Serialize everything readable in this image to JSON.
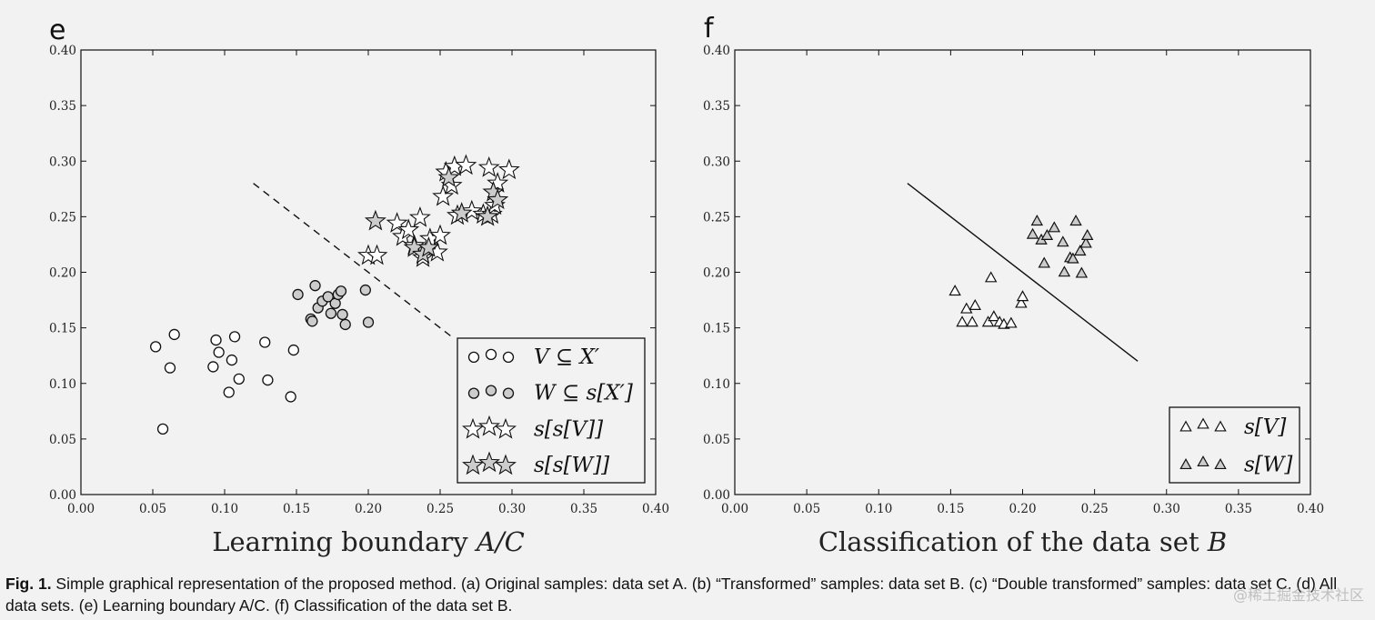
{
  "chart_data": [
    {
      "type": "scatter",
      "panel_letter": "e",
      "xlabel_text": "Learning boundary ",
      "xlabel_math": "A/C",
      "xlim": [
        0,
        0.4
      ],
      "ylim": [
        0,
        0.4
      ],
      "xticks": [
        "0.00",
        "0.05",
        "0.10",
        "0.15",
        "0.20",
        "0.25",
        "0.30",
        "0.35",
        "0.40"
      ],
      "yticks": [
        "0.00",
        "0.05",
        "0.10",
        "0.15",
        "0.20",
        "0.25",
        "0.30",
        "0.35",
        "0.40"
      ],
      "boundary": {
        "style": "dashed",
        "x": [
          0.12,
          0.26
        ],
        "y": [
          0.28,
          0.14
        ]
      },
      "series": [
        {
          "name": "V ⊆ X′",
          "marker": "circle",
          "fill": "#ffffff",
          "x": [
            0.052,
            0.057,
            0.062,
            0.065,
            0.092,
            0.094,
            0.096,
            0.103,
            0.105,
            0.107,
            0.11,
            0.128,
            0.13,
            0.146,
            0.148
          ],
          "y": [
            0.133,
            0.059,
            0.114,
            0.144,
            0.115,
            0.139,
            0.128,
            0.092,
            0.121,
            0.142,
            0.104,
            0.137,
            0.103,
            0.088,
            0.13
          ]
        },
        {
          "name": "W ⊆ s[X′]",
          "marker": "circle",
          "fill": "#cccccc",
          "x": [
            0.151,
            0.16,
            0.161,
            0.163,
            0.165,
            0.168,
            0.172,
            0.174,
            0.177,
            0.179,
            0.181,
            0.182,
            0.184,
            0.198,
            0.2
          ],
          "y": [
            0.18,
            0.158,
            0.156,
            0.188,
            0.168,
            0.174,
            0.178,
            0.163,
            0.172,
            0.18,
            0.183,
            0.162,
            0.153,
            0.184,
            0.155
          ]
        },
        {
          "name": "s[s[V]]",
          "marker": "star",
          "fill": "#ffffff",
          "x": [
            0.2,
            0.206,
            0.22,
            0.224,
            0.228,
            0.232,
            0.236,
            0.238,
            0.243,
            0.248,
            0.25,
            0.252,
            0.254,
            0.258,
            0.26,
            0.262,
            0.268,
            0.272,
            0.28,
            0.284,
            0.286,
            0.288,
            0.29,
            0.298
          ],
          "y": [
            0.215,
            0.215,
            0.244,
            0.232,
            0.238,
            0.224,
            0.249,
            0.213,
            0.23,
            0.218,
            0.233,
            0.268,
            0.29,
            0.278,
            0.295,
            0.251,
            0.296,
            0.255,
            0.252,
            0.294,
            0.252,
            0.26,
            0.28,
            0.292
          ]
        },
        {
          "name": "s[s[W]]",
          "marker": "star",
          "fill": "#cccccc",
          "x": [
            0.205,
            0.232,
            0.238,
            0.242,
            0.256,
            0.265,
            0.283,
            0.287,
            0.29
          ],
          "y": [
            0.246,
            0.222,
            0.216,
            0.222,
            0.285,
            0.253,
            0.25,
            0.272,
            0.265
          ]
        }
      ]
    },
    {
      "type": "scatter",
      "panel_letter": "f",
      "xlabel_text": "Classification of the data set ",
      "xlabel_math": "B",
      "xlim": [
        0,
        0.4
      ],
      "ylim": [
        0,
        0.4
      ],
      "xticks": [
        "0.00",
        "0.05",
        "0.10",
        "0.15",
        "0.20",
        "0.25",
        "0.30",
        "0.35",
        "0.40"
      ],
      "yticks": [
        "0.00",
        "0.05",
        "0.10",
        "0.15",
        "0.20",
        "0.25",
        "0.30",
        "0.35",
        "0.40"
      ],
      "boundary": {
        "style": "solid",
        "x": [
          0.12,
          0.28
        ],
        "y": [
          0.28,
          0.12
        ]
      },
      "series": [
        {
          "name": "s[V]",
          "marker": "triangle",
          "fill": "#ffffff",
          "x": [
            0.153,
            0.158,
            0.161,
            0.165,
            0.167,
            0.176,
            0.178,
            0.18,
            0.184,
            0.187,
            0.192,
            0.199,
            0.2
          ],
          "y": [
            0.183,
            0.155,
            0.167,
            0.155,
            0.17,
            0.155,
            0.195,
            0.16,
            0.155,
            0.153,
            0.154,
            0.172,
            0.178
          ]
        },
        {
          "name": "s[W]",
          "marker": "triangle",
          "fill": "#cccccc",
          "x": [
            0.207,
            0.21,
            0.213,
            0.215,
            0.217,
            0.222,
            0.228,
            0.229,
            0.233,
            0.235,
            0.237,
            0.24,
            0.241,
            0.244,
            0.245
          ],
          "y": [
            0.234,
            0.246,
            0.229,
            0.208,
            0.233,
            0.24,
            0.227,
            0.2,
            0.213,
            0.212,
            0.246,
            0.219,
            0.199,
            0.226,
            0.233
          ]
        }
      ]
    }
  ],
  "caption": {
    "label": "Fig. 1.",
    "text": " Simple graphical representation of the proposed method. (a) Original samples: data set A. (b) “Transformed” samples: data set B. (c) “Double transformed” samples: data set C. (d) All data sets. (e) Learning boundary A/C. (f) Classification of the data set B."
  },
  "watermark": "@稀土掘金技术社区"
}
